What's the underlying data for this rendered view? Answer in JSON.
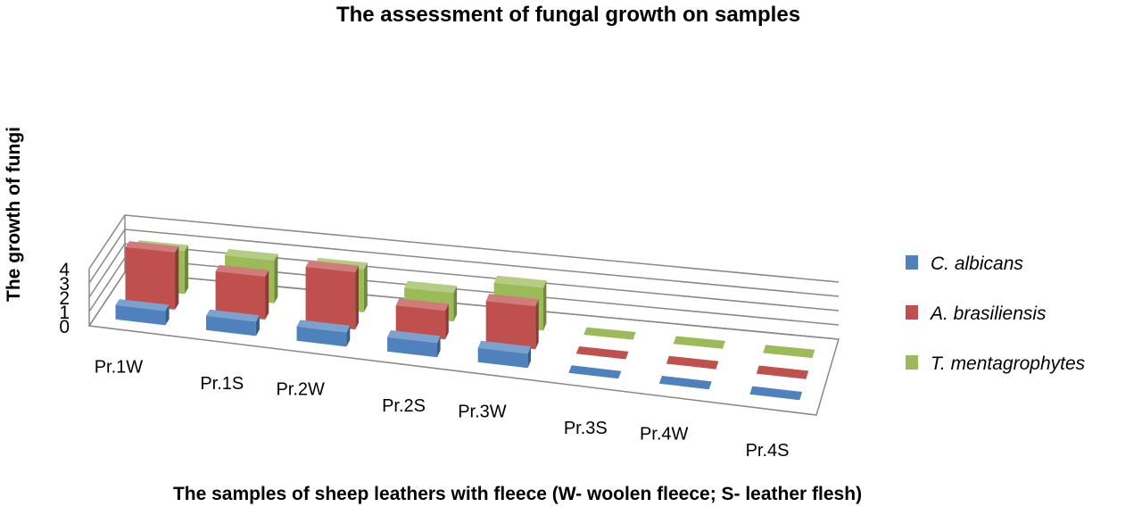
{
  "chart_data": {
    "type": "bar",
    "title": "The assessment of fungal growth on samples",
    "xlabel": "The samples of sheep leathers with fleece (W- woolen fleece; S- leather flesh)",
    "ylabel": "The growth of fungi",
    "ylim": [
      0,
      4
    ],
    "yticks": [
      "0",
      "1",
      "2",
      "3",
      "4"
    ],
    "categories": [
      "Pr.1W",
      "Pr.1S",
      "Pr.2W",
      "Pr.2S",
      "Pr.3W",
      "Pr.3S",
      "Pr.4W",
      "Pr.4S"
    ],
    "series": [
      {
        "name": "C. albicans",
        "color": "#4F81BD",
        "values": [
          1,
          1,
          1,
          1,
          1,
          0,
          0,
          0
        ]
      },
      {
        "name": "A. brasiliensis",
        "color": "#C0504D",
        "values": [
          4,
          3,
          4,
          2,
          3,
          0,
          0,
          0
        ]
      },
      {
        "name": "T. mentagrophytes",
        "color": "#9BBB59",
        "values": [
          3,
          3,
          3,
          2,
          3,
          0,
          0,
          0
        ]
      }
    ],
    "grid": true,
    "legend_position": "right",
    "projection": "3d-clustered"
  }
}
